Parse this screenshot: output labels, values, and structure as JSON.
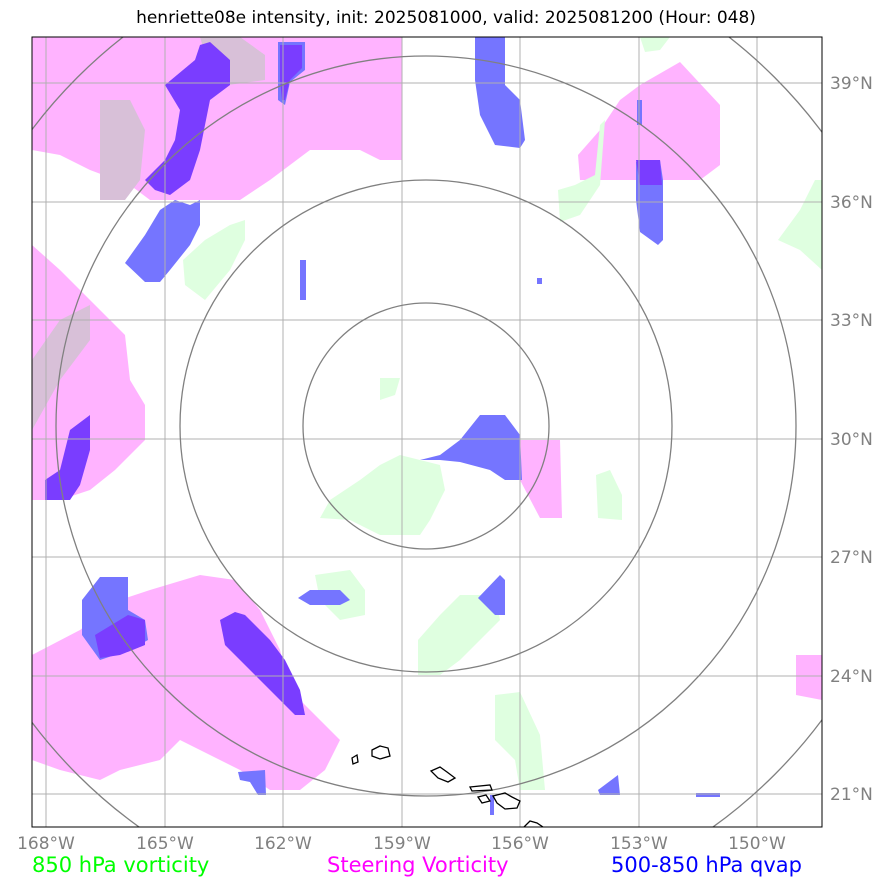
{
  "title": "henriette08e intensity, init: 2025081000, valid: 2025081200 (Hour: 048)",
  "lat_labels": [
    "39°N",
    "36°N",
    "33°N",
    "30°N",
    "27°N",
    "24°N",
    "21°N"
  ],
  "lon_labels": [
    "168°W",
    "165°W",
    "162°W",
    "159°W",
    "156°W",
    "153°W",
    "150°W"
  ],
  "legend": {
    "vort850": "850 hPa vorticity",
    "steering": "Steering Vorticity",
    "qvap": "500-850 hPa qvap"
  },
  "colors": {
    "vort850": "#00ff00",
    "steering": "#ff00ff",
    "qvap": "#0000ff",
    "vort850_fill": "#dfffe0",
    "steering_fill": "#ffb3ff",
    "qvap_fill": "#7575ff",
    "grid": "#b0b0b0",
    "rings": "#808080"
  },
  "range_rings_count": 4
}
